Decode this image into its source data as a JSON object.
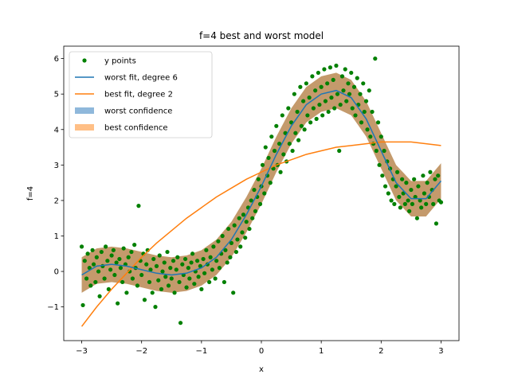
{
  "chart_data": {
    "type": "scatter",
    "title": "f=4 best and worst model",
    "xlabel": "x",
    "ylabel": "f=4",
    "xlim": [
      -3.3,
      3.3
    ],
    "ylim": [
      -1.95,
      6.35
    ],
    "x_ticks": [
      -3,
      -2,
      -1,
      0,
      1,
      2,
      3
    ],
    "y_ticks": [
      -1,
      0,
      1,
      2,
      3,
      4,
      5,
      6
    ],
    "grid": false,
    "legend_position": "top-left",
    "colors": {
      "points": "#008000",
      "worst_fit": "#1f77b4",
      "best_fit": "#ff7f0e",
      "worst_confidence": "#1f77b4",
      "best_confidence": "#ff7f0e",
      "overlap": "#c49a6c"
    },
    "legend": [
      {
        "label": "y points",
        "kind": "marker",
        "color": "#008000"
      },
      {
        "label": "worst fit, degree 6",
        "kind": "line",
        "color": "#1f77b4"
      },
      {
        "label": "best fit, degree 2",
        "kind": "line",
        "color": "#ff7f0e"
      },
      {
        "label": "worst confidence",
        "kind": "patch",
        "color": "#8fb8db"
      },
      {
        "label": "best confidence",
        "kind": "patch",
        "color": "#ffbf86"
      }
    ],
    "worst_fit": {
      "x": [
        -3.0,
        -2.75,
        -2.5,
        -2.25,
        -2.0,
        -1.75,
        -1.5,
        -1.25,
        -1.0,
        -0.75,
        -0.5,
        -0.25,
        0.0,
        0.25,
        0.5,
        0.75,
        1.0,
        1.25,
        1.5,
        1.75,
        2.0,
        2.25,
        2.5,
        2.75,
        3.0
      ],
      "y": [
        -0.1,
        0.15,
        0.2,
        0.15,
        0.05,
        -0.05,
        -0.1,
        -0.05,
        0.1,
        0.4,
        0.9,
        1.6,
        2.4,
        3.3,
        4.1,
        4.7,
        5.0,
        5.1,
        4.9,
        4.3,
        3.4,
        2.5,
        2.05,
        2.05,
        2.55
      ],
      "band_halfwidth": 0.5
    },
    "best_fit": {
      "x": [
        -3.0,
        -2.75,
        -2.5,
        -2.25,
        -2.0,
        -1.75,
        -1.5,
        -1.25,
        -1.0,
        -0.75,
        -0.5,
        -0.25,
        0.0,
        0.25,
        0.5,
        0.75,
        1.0,
        1.25,
        1.5,
        1.75,
        2.0,
        2.25,
        2.5,
        2.75,
        3.0
      ],
      "y": [
        -1.55,
        -1.0,
        -0.5,
        -0.05,
        0.4,
        0.8,
        1.15,
        1.5,
        1.8,
        2.1,
        2.35,
        2.6,
        2.8,
        3.0,
        3.15,
        3.3,
        3.4,
        3.5,
        3.55,
        3.6,
        3.65,
        3.65,
        3.65,
        3.6,
        3.55
      ]
    },
    "points": [
      [
        -3.0,
        0.7
      ],
      [
        -2.98,
        -0.95
      ],
      [
        -2.95,
        0.3
      ],
      [
        -2.92,
        -0.2
      ],
      [
        -2.9,
        0.5
      ],
      [
        -2.87,
        0.1
      ],
      [
        -2.85,
        -0.4
      ],
      [
        -2.82,
        0.6
      ],
      [
        -2.8,
        0.2
      ],
      [
        -2.77,
        -0.3
      ],
      [
        -2.75,
        0.4
      ],
      [
        -2.72,
        0.0
      ],
      [
        -2.7,
        -0.7
      ],
      [
        -2.67,
        0.55
      ],
      [
        -2.65,
        0.15
      ],
      [
        -2.62,
        -0.2
      ],
      [
        -2.6,
        0.7
      ],
      [
        -2.57,
        0.3
      ],
      [
        -2.55,
        -0.5
      ],
      [
        -2.52,
        0.05
      ],
      [
        -2.5,
        0.45
      ],
      [
        -2.47,
        0.6
      ],
      [
        -2.45,
        -0.1
      ],
      [
        -2.42,
        0.25
      ],
      [
        -2.4,
        -0.9
      ],
      [
        -2.37,
        0.35
      ],
      [
        -2.35,
        0.1
      ],
      [
        -2.32,
        -0.3
      ],
      [
        -2.3,
        0.65
      ],
      [
        -2.27,
        0.2
      ],
      [
        -2.25,
        -0.6
      ],
      [
        -2.22,
        0.4
      ],
      [
        -2.2,
        0.0
      ],
      [
        -2.17,
        0.55
      ],
      [
        -2.15,
        -0.2
      ],
      [
        -2.12,
        0.75
      ],
      [
        -2.1,
        0.1
      ],
      [
        -2.07,
        -0.4
      ],
      [
        -2.05,
        1.85
      ],
      [
        -2.02,
        0.3
      ],
      [
        -2.0,
        -0.1
      ],
      [
        -1.97,
        0.5
      ],
      [
        -1.95,
        -0.8
      ],
      [
        -1.92,
        0.2
      ],
      [
        -1.9,
        0.6
      ],
      [
        -1.87,
        -0.3
      ],
      [
        -1.85,
        0.05
      ],
      [
        -1.82,
        -0.6
      ],
      [
        -1.8,
        0.35
      ],
      [
        -1.77,
        -1.0
      ],
      [
        -1.75,
        0.15
      ],
      [
        -1.72,
        -0.25
      ],
      [
        -1.7,
        0.45
      ],
      [
        -1.67,
        -0.5
      ],
      [
        -1.65,
        0.0
      ],
      [
        -1.62,
        0.25
      ],
      [
        -1.6,
        -0.15
      ],
      [
        -1.57,
        0.55
      ],
      [
        -1.55,
        -0.4
      ],
      [
        -1.52,
        0.1
      ],
      [
        -1.5,
        -0.2
      ],
      [
        -1.47,
        0.3
      ],
      [
        -1.45,
        -0.6
      ],
      [
        -1.42,
        0.05
      ],
      [
        -1.4,
        0.4
      ],
      [
        -1.37,
        -0.3
      ],
      [
        -1.35,
        -1.45
      ],
      [
        -1.32,
        0.2
      ],
      [
        -1.3,
        -0.1
      ],
      [
        -1.27,
        0.35
      ],
      [
        -1.25,
        -0.45
      ],
      [
        -1.22,
        0.1
      ],
      [
        -1.2,
        -0.2
      ],
      [
        -1.17,
        0.25
      ],
      [
        -1.15,
        0.5
      ],
      [
        -1.12,
        -0.35
      ],
      [
        -1.1,
        0.0
      ],
      [
        -1.07,
        0.3
      ],
      [
        -1.05,
        -0.15
      ],
      [
        -1.02,
        0.15
      ],
      [
        -1.0,
        -0.5
      ],
      [
        -0.97,
        0.35
      ],
      [
        -0.95,
        -0.05
      ],
      [
        -0.92,
        0.6
      ],
      [
        -0.9,
        0.2
      ],
      [
        -0.87,
        -0.3
      ],
      [
        -0.85,
        0.4
      ],
      [
        -0.82,
        0.05
      ],
      [
        -0.8,
        0.7
      ],
      [
        -0.77,
        -0.2
      ],
      [
        -0.75,
        0.3
      ],
      [
        -0.72,
        0.85
      ],
      [
        -0.7,
        0.1
      ],
      [
        -0.67,
        0.5
      ],
      [
        -0.65,
        1.0
      ],
      [
        -0.62,
        -0.3
      ],
      [
        -0.6,
        0.6
      ],
      [
        -0.57,
        0.25
      ],
      [
        -0.55,
        1.2
      ],
      [
        -0.52,
        0.4
      ],
      [
        -0.5,
        0.8
      ],
      [
        -0.47,
        -0.6
      ],
      [
        -0.45,
        1.3
      ],
      [
        -0.42,
        0.55
      ],
      [
        -0.4,
        0.9
      ],
      [
        -0.37,
        1.5
      ],
      [
        -0.35,
        0.7
      ],
      [
        -0.32,
        1.1
      ],
      [
        -0.3,
        1.6
      ],
      [
        -0.27,
        0.95
      ],
      [
        -0.25,
        1.4
      ],
      [
        -0.22,
        1.8
      ],
      [
        -0.2,
        1.2
      ],
      [
        -0.17,
        2.0
      ],
      [
        -0.15,
        1.5
      ],
      [
        -0.12,
        2.3
      ],
      [
        -0.1,
        1.7
      ],
      [
        -0.07,
        2.1
      ],
      [
        -0.05,
        2.6
      ],
      [
        -0.02,
        1.9
      ],
      [
        0.0,
        2.4
      ],
      [
        0.02,
        3.0
      ],
      [
        0.05,
        2.2
      ],
      [
        0.07,
        3.5
      ],
      [
        0.1,
        2.7
      ],
      [
        0.12,
        3.2
      ],
      [
        0.15,
        2.5
      ],
      [
        0.17,
        3.8
      ],
      [
        0.2,
        2.9
      ],
      [
        0.22,
        3.4
      ],
      [
        0.25,
        4.1
      ],
      [
        0.27,
        3.0
      ],
      [
        0.3,
        3.6
      ],
      [
        0.32,
        2.8
      ],
      [
        0.35,
        4.4
      ],
      [
        0.37,
        3.3
      ],
      [
        0.4,
        3.9
      ],
      [
        0.42,
        3.1
      ],
      [
        0.45,
        4.6
      ],
      [
        0.47,
        3.6
      ],
      [
        0.5,
        4.2
      ],
      [
        0.52,
        3.4
      ],
      [
        0.55,
        5.0
      ],
      [
        0.57,
        3.9
      ],
      [
        0.6,
        4.5
      ],
      [
        0.62,
        3.7
      ],
      [
        0.65,
        5.2
      ],
      [
        0.67,
        4.1
      ],
      [
        0.7,
        4.8
      ],
      [
        0.72,
        4.0
      ],
      [
        0.75,
        5.3
      ],
      [
        0.77,
        4.4
      ],
      [
        0.8,
        4.9
      ],
      [
        0.82,
        4.2
      ],
      [
        0.85,
        5.5
      ],
      [
        0.87,
        4.6
      ],
      [
        0.9,
        5.1
      ],
      [
        0.92,
        4.3
      ],
      [
        0.95,
        5.6
      ],
      [
        0.97,
        4.7
      ],
      [
        1.0,
        5.2
      ],
      [
        1.02,
        4.4
      ],
      [
        1.05,
        5.7
      ],
      [
        1.07,
        4.8
      ],
      [
        1.1,
        5.3
      ],
      [
        1.12,
        4.5
      ],
      [
        1.15,
        5.75
      ],
      [
        1.17,
        4.9
      ],
      [
        1.2,
        5.4
      ],
      [
        1.22,
        4.6
      ],
      [
        1.25,
        5.8
      ],
      [
        1.27,
        5.0
      ],
      [
        1.3,
        3.4
      ],
      [
        1.32,
        4.7
      ],
      [
        1.35,
        5.5
      ],
      [
        1.37,
        5.1
      ],
      [
        1.4,
        5.7
      ],
      [
        1.42,
        4.8
      ],
      [
        1.45,
        5.3
      ],
      [
        1.47,
        5.0
      ],
      [
        1.5,
        5.6
      ],
      [
        1.52,
        4.6
      ],
      [
        1.55,
        5.2
      ],
      [
        1.57,
        4.4
      ],
      [
        1.6,
        5.45
      ],
      [
        1.62,
        4.7
      ],
      [
        1.65,
        5.0
      ],
      [
        1.67,
        4.2
      ],
      [
        1.7,
        5.3
      ],
      [
        1.72,
        4.5
      ],
      [
        1.75,
        4.8
      ],
      [
        1.77,
        4.0
      ],
      [
        1.8,
        5.1
      ],
      [
        1.82,
        3.8
      ],
      [
        1.85,
        4.5
      ],
      [
        1.87,
        3.6
      ],
      [
        1.9,
        6.0
      ],
      [
        1.92,
        3.4
      ],
      [
        1.95,
        4.2
      ],
      [
        1.97,
        3.0
      ],
      [
        2.0,
        3.8
      ],
      [
        2.02,
        2.7
      ],
      [
        2.05,
        3.4
      ],
      [
        2.07,
        2.4
      ],
      [
        2.1,
        3.1
      ],
      [
        2.12,
        2.2
      ],
      [
        2.15,
        2.9
      ],
      [
        2.17,
        2.0
      ],
      [
        2.2,
        2.6
      ],
      [
        2.22,
        1.9
      ],
      [
        2.25,
        2.4
      ],
      [
        2.27,
        2.8
      ],
      [
        2.3,
        2.1
      ],
      [
        2.32,
        1.8
      ],
      [
        2.35,
        2.6
      ],
      [
        2.37,
        2.2
      ],
      [
        2.4,
        1.9
      ],
      [
        2.42,
        2.5
      ],
      [
        2.45,
        2.0
      ],
      [
        2.47,
        1.7
      ],
      [
        2.5,
        2.3
      ],
      [
        2.52,
        1.9
      ],
      [
        2.55,
        2.6
      ],
      [
        2.57,
        2.1
      ],
      [
        2.6,
        1.5
      ],
      [
        2.62,
        2.4
      ],
      [
        2.65,
        2.0
      ],
      [
        2.67,
        1.8
      ],
      [
        2.7,
        2.7
      ],
      [
        2.72,
        2.2
      ],
      [
        2.75,
        1.9
      ],
      [
        2.77,
        2.5
      ],
      [
        2.8,
        2.1
      ],
      [
        2.82,
        2.8
      ],
      [
        2.85,
        2.3
      ],
      [
        2.87,
        1.9
      ],
      [
        2.9,
        2.6
      ],
      [
        2.92,
        1.35
      ],
      [
        2.95,
        2.7
      ],
      [
        2.97,
        2.0
      ],
      [
        3.0,
        1.95
      ]
    ]
  }
}
